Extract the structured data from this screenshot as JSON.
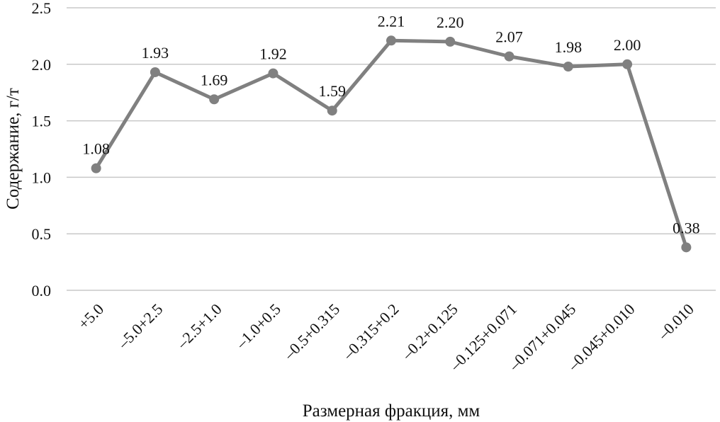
{
  "chart_data": {
    "type": "line",
    "title": "",
    "xlabel": "Размерная фракция, мм",
    "ylabel": "Содержание, г/т",
    "categories": [
      "+5.0",
      "–5.0+2.5",
      "–2.5+1.0",
      "–1.0+0.5",
      "–0.5+0.315",
      "–0.315+0.2",
      "–0.2+0.125",
      "–0.125+0.071",
      "–0.071+0.045",
      "–0.045+0.010",
      "–0.010"
    ],
    "values": [
      1.08,
      1.93,
      1.69,
      1.92,
      1.59,
      2.21,
      2.2,
      2.07,
      1.98,
      2.0,
      0.38
    ],
    "data_labels": [
      "1.08",
      "1.93",
      "1.69",
      "1.92",
      "1.59",
      "2.21",
      "2.20",
      "2.07",
      "1.98",
      "2.00",
      "0.38"
    ],
    "ylim": [
      0,
      2.5
    ],
    "yticks": [
      "0.0",
      "0.5",
      "1.0",
      "1.5",
      "2.0",
      "2.5"
    ],
    "grid": true,
    "legend": "none",
    "colors": {
      "line": "#808080",
      "grid": "#c8c8c8",
      "text": "#111111"
    }
  }
}
